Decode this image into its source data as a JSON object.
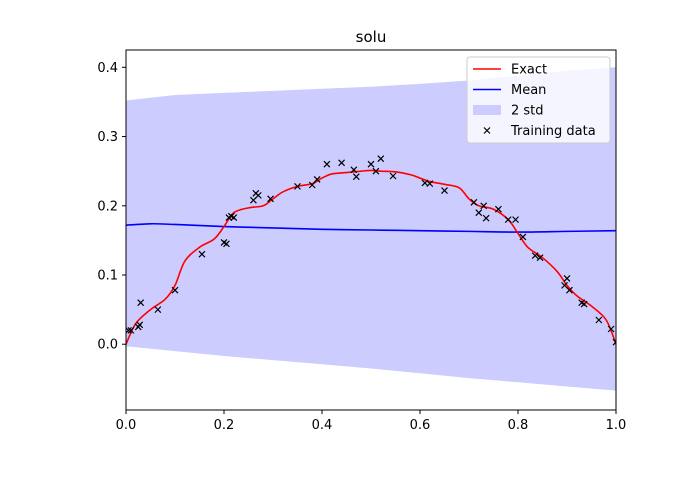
{
  "chart_data": {
    "type": "line",
    "title": "solu",
    "xlabel": "",
    "ylabel": "",
    "xlim": [
      0.0,
      1.0
    ],
    "ylim": [
      -0.095,
      0.425
    ],
    "grid": false,
    "legend_position": "top-right",
    "x_ticks": [
      "0.0",
      "0.2",
      "0.4",
      "0.6",
      "0.8",
      "1.0"
    ],
    "x_tick_values": [
      0.0,
      0.2,
      0.4,
      0.6,
      0.8,
      1.0
    ],
    "y_ticks": [
      "0.0",
      "0.1",
      "0.2",
      "0.3",
      "0.4"
    ],
    "y_tick_values": [
      0.0,
      0.1,
      0.2,
      0.3,
      0.4
    ],
    "series": [
      {
        "name": "Exact",
        "kind": "line",
        "color": "#ff0000",
        "x": [
          0.0,
          0.02,
          0.05,
          0.08,
          0.1,
          0.12,
          0.15,
          0.18,
          0.2,
          0.22,
          0.25,
          0.28,
          0.3,
          0.32,
          0.35,
          0.38,
          0.4,
          0.42,
          0.45,
          0.48,
          0.5,
          0.52,
          0.55,
          0.58,
          0.6,
          0.62,
          0.65,
          0.68,
          0.7,
          0.72,
          0.75,
          0.78,
          0.8,
          0.82,
          0.85,
          0.88,
          0.9,
          0.92,
          0.95,
          0.98,
          1.0
        ],
        "y": [
          0.0,
          0.03,
          0.05,
          0.065,
          0.085,
          0.12,
          0.14,
          0.152,
          0.17,
          0.19,
          0.197,
          0.2,
          0.21,
          0.22,
          0.228,
          0.232,
          0.24,
          0.246,
          0.248,
          0.25,
          0.251,
          0.25,
          0.249,
          0.245,
          0.24,
          0.235,
          0.231,
          0.226,
          0.21,
          0.2,
          0.195,
          0.18,
          0.16,
          0.14,
          0.125,
          0.105,
          0.085,
          0.07,
          0.055,
          0.035,
          0.0
        ]
      },
      {
        "name": "Mean",
        "kind": "line",
        "color": "#0000ff",
        "x": [
          0.0,
          0.05,
          0.1,
          0.2,
          0.3,
          0.4,
          0.5,
          0.6,
          0.7,
          0.8,
          0.9,
          1.0
        ],
        "y": [
          0.172,
          0.174,
          0.173,
          0.17,
          0.168,
          0.166,
          0.165,
          0.164,
          0.163,
          0.162,
          0.163,
          0.164
        ]
      },
      {
        "name": "2 std",
        "kind": "band",
        "color": "#ccccff",
        "x": [
          0.0,
          0.1,
          0.2,
          0.3,
          0.4,
          0.5,
          0.6,
          0.7,
          0.8,
          0.9,
          1.0
        ],
        "upper": [
          0.352,
          0.36,
          0.363,
          0.366,
          0.369,
          0.372,
          0.376,
          0.381,
          0.388,
          0.395,
          0.4
        ],
        "lower": [
          -0.003,
          -0.01,
          -0.017,
          -0.023,
          -0.029,
          -0.035,
          -0.042,
          -0.049,
          -0.055,
          -0.061,
          -0.067
        ]
      },
      {
        "name": "Training data",
        "kind": "scatter",
        "color": "#000000",
        "x": [
          0.005,
          0.01,
          0.025,
          0.028,
          0.03,
          0.065,
          0.1,
          0.155,
          0.2,
          0.205,
          0.21,
          0.215,
          0.22,
          0.26,
          0.265,
          0.27,
          0.295,
          0.35,
          0.38,
          0.39,
          0.41,
          0.44,
          0.465,
          0.47,
          0.5,
          0.51,
          0.52,
          0.545,
          0.61,
          0.62,
          0.65,
          0.71,
          0.72,
          0.73,
          0.735,
          0.76,
          0.78,
          0.795,
          0.81,
          0.835,
          0.845,
          0.895,
          0.9,
          0.905,
          0.93,
          0.935,
          0.965,
          0.99,
          1.0
        ],
        "y": [
          0.02,
          0.02,
          0.025,
          0.028,
          0.06,
          0.05,
          0.078,
          0.13,
          0.147,
          0.145,
          0.183,
          0.185,
          0.183,
          0.208,
          0.218,
          0.215,
          0.21,
          0.228,
          0.23,
          0.238,
          0.26,
          0.262,
          0.252,
          0.242,
          0.26,
          0.25,
          0.268,
          0.243,
          0.233,
          0.232,
          0.222,
          0.205,
          0.19,
          0.2,
          0.182,
          0.195,
          0.18,
          0.18,
          0.155,
          0.128,
          0.125,
          0.085,
          0.095,
          0.078,
          0.06,
          0.058,
          0.035,
          0.022,
          0.003
        ]
      }
    ]
  }
}
